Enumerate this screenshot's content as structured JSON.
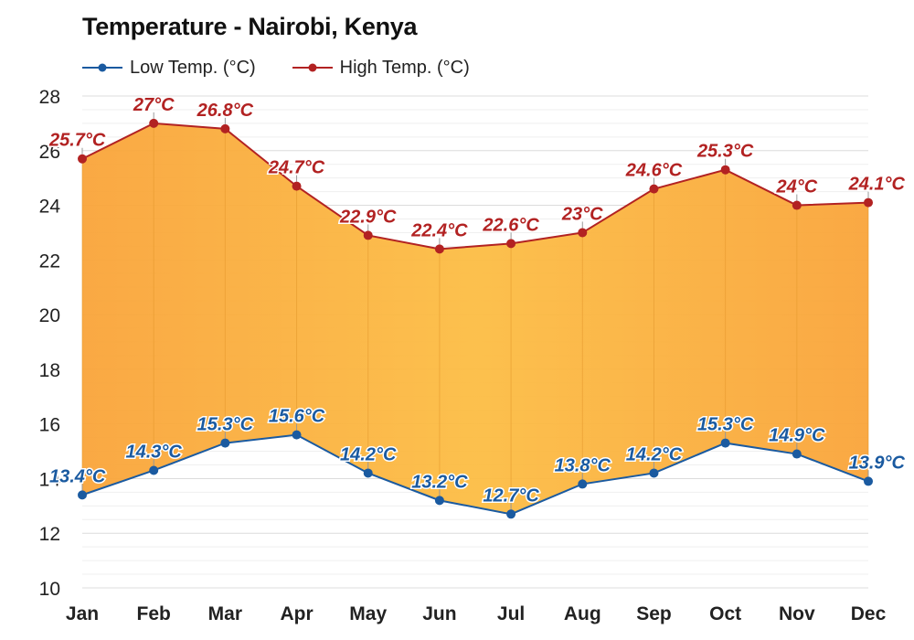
{
  "chart_data": {
    "type": "line",
    "title": "Temperature - Nairobi, Kenya",
    "categories": [
      "Jan",
      "Feb",
      "Mar",
      "Apr",
      "May",
      "Jun",
      "Jul",
      "Aug",
      "Sep",
      "Oct",
      "Nov",
      "Dec"
    ],
    "series": [
      {
        "name": "Low Temp. (°C)",
        "color": "#1a5aa0",
        "values": [
          13.4,
          14.3,
          15.3,
          15.6,
          14.2,
          13.2,
          12.7,
          13.8,
          14.2,
          15.3,
          14.9,
          13.9
        ],
        "labels": [
          "13.4°C",
          "14.3°C",
          "15.3°C",
          "15.6°C",
          "14.2°C",
          "13.2°C",
          "12.7°C",
          "13.8°C",
          "14.2°C",
          "15.3°C",
          "14.9°C",
          "13.9°C"
        ]
      },
      {
        "name": "High Temp. (°C)",
        "color": "#b22222",
        "values": [
          25.7,
          27,
          26.8,
          24.7,
          22.9,
          22.4,
          22.6,
          23,
          24.6,
          25.3,
          24,
          24.1
        ],
        "labels": [
          "25.7°C",
          "27°C",
          "26.8°C",
          "24.7°C",
          "22.9°C",
          "22.4°C",
          "22.6°C",
          "23°C",
          "24.6°C",
          "25.3°C",
          "24°C",
          "24.1°C"
        ]
      }
    ],
    "ylim": [
      10,
      28
    ],
    "yticks": [
      "10",
      "12",
      "14",
      "16",
      "18",
      "20",
      "22",
      "24",
      "26",
      "28"
    ],
    "fill_color": "#fbb03b",
    "grid": true,
    "legend": "top-left",
    "xlabel": "",
    "ylabel": ""
  }
}
